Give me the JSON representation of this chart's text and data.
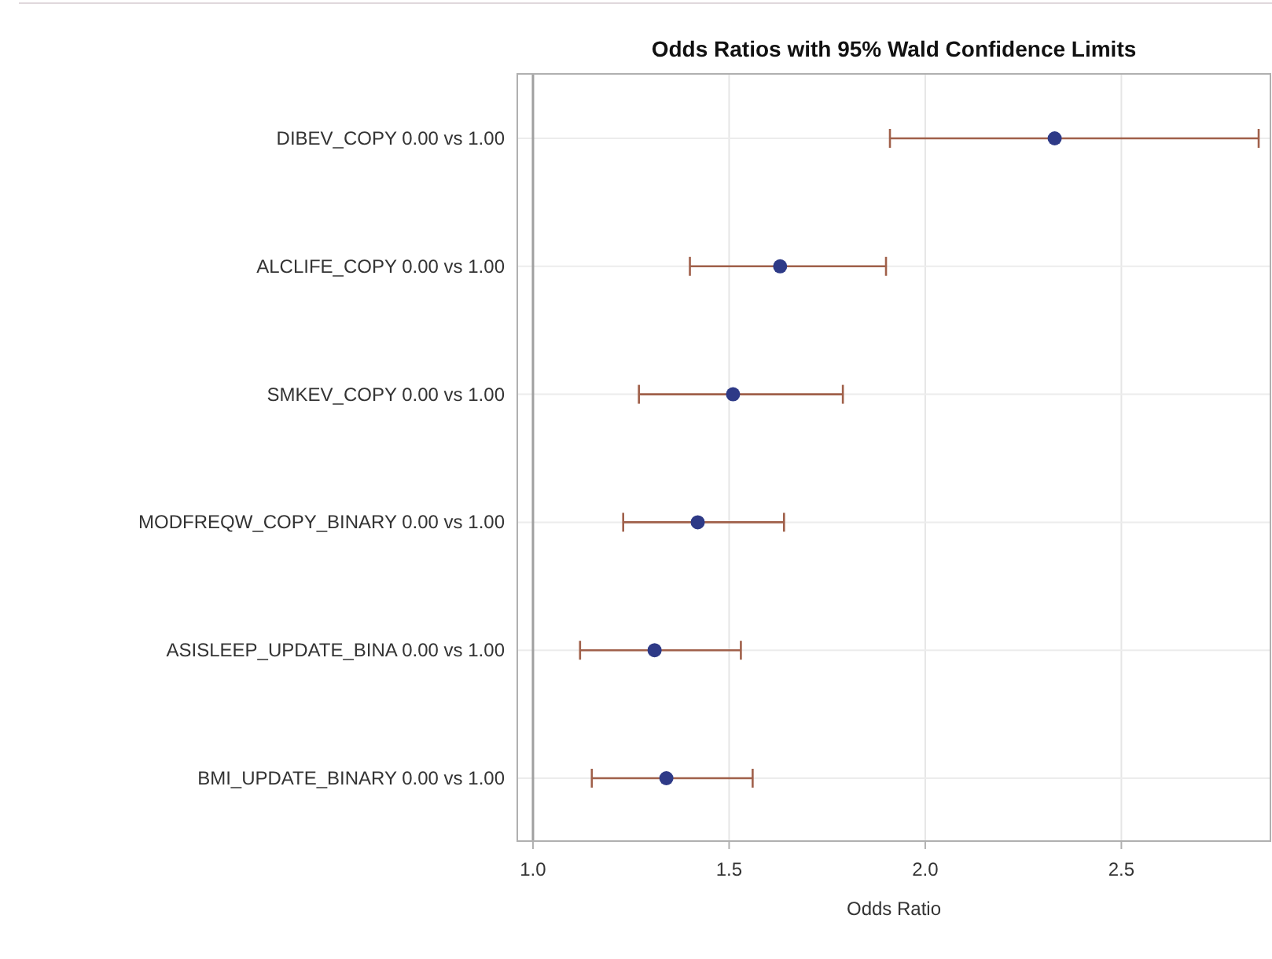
{
  "chart_data": {
    "type": "scatter",
    "orientation": "horizontal",
    "title": "Odds Ratios with 95% Wald Confidence Limits",
    "xlabel": "Odds Ratio",
    "categories": [
      "DIBEV_COPY 0.00 vs 1.00",
      "ALCLIFE_COPY 0.00 vs 1.00",
      "SMKEV_COPY 0.00 vs 1.00",
      "MODFREQW_COPY_BINARY 0.00 vs 1.00",
      "ASISLEEP_UPDATE_BINA 0.00 vs 1.00",
      "BMI_UPDATE_BINARY 0.00 vs 1.00"
    ],
    "series": [
      {
        "color": "#2e3a87",
        "values": [
          2.33,
          1.63,
          1.51,
          1.42,
          1.31,
          1.34
        ],
        "errors": [
          [
            1.91,
            2.85
          ],
          [
            1.4,
            1.9
          ],
          [
            1.27,
            1.79
          ],
          [
            1.23,
            1.64
          ],
          [
            1.12,
            1.53
          ],
          [
            1.15,
            1.56
          ]
        ]
      }
    ],
    "xlim": [
      0.96,
      2.88
    ],
    "xticks": [
      {
        "value": 1,
        "label": "1.0"
      },
      {
        "value": 1.5,
        "label": "1.5"
      },
      {
        "value": 2,
        "label": "2.0"
      },
      {
        "value": 2.5,
        "label": "2.5"
      }
    ],
    "ref_lines": [
      {
        "axis": "x",
        "value": 1,
        "color": "#a0a0a0"
      }
    ],
    "grid": true,
    "marker": "circle"
  }
}
